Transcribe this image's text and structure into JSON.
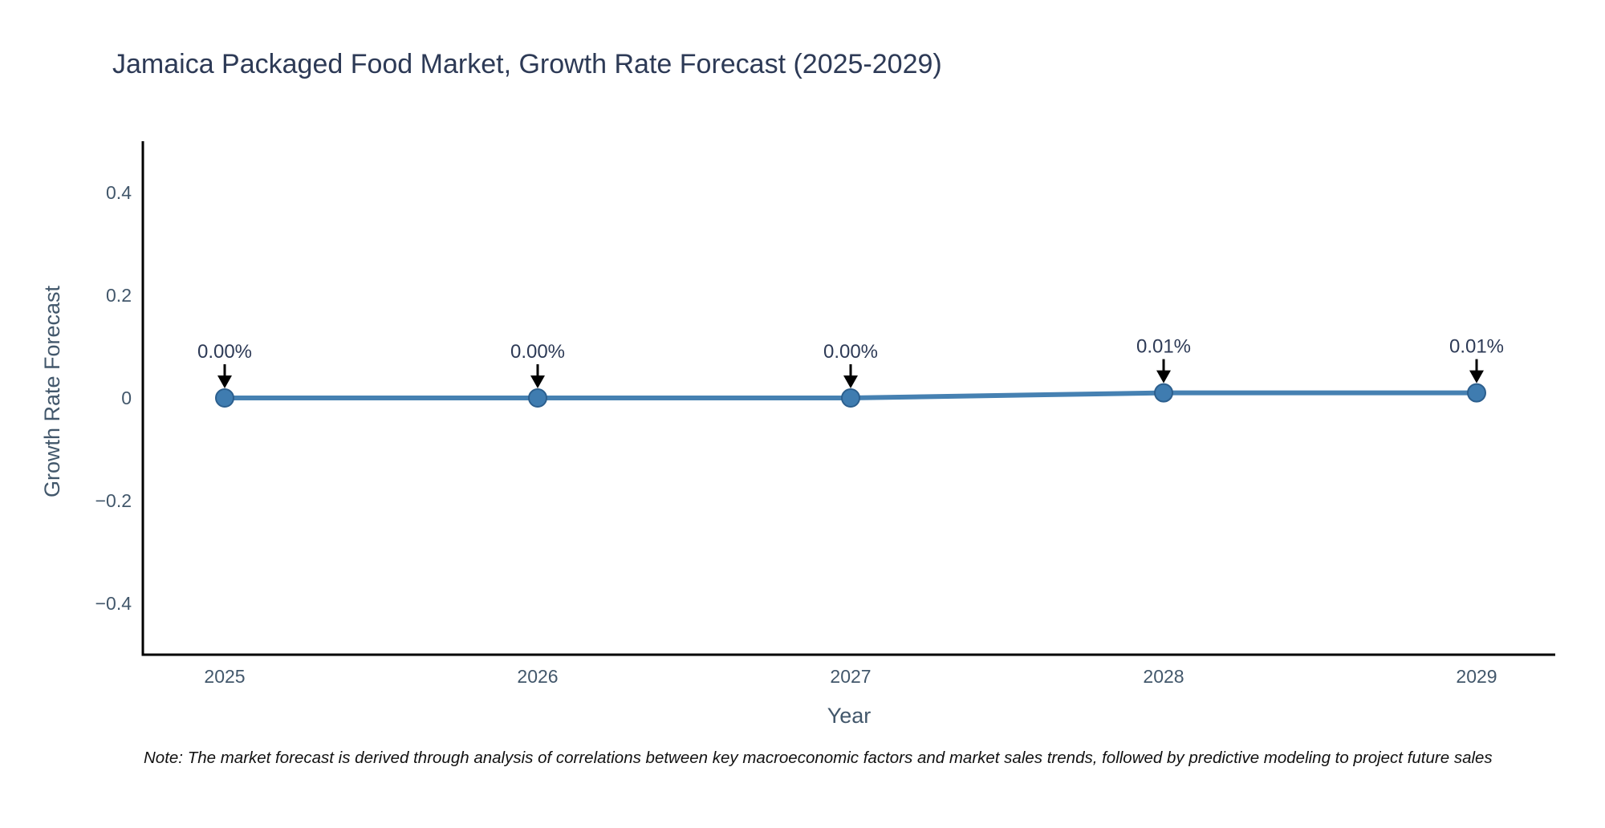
{
  "header": {
    "title": "Jamaica Packaged Food Market, Growth Rate Forecast (2025-2029)"
  },
  "footer": {
    "note": "Note: The market forecast is derived through analysis of correlations between key macroeconomic factors and market sales trends, followed by predictive modeling to project future sales"
  },
  "chart_data": {
    "type": "line",
    "title": "Jamaica Packaged Food Market, Growth Rate Forecast (2025-2029)",
    "xlabel": "Year",
    "ylabel": "Growth Rate Forecast",
    "categories": [
      "2025",
      "2026",
      "2027",
      "2028",
      "2029"
    ],
    "values": [
      0.0,
      0.0,
      0.0,
      0.01,
      0.01
    ],
    "point_labels": [
      "0.00%",
      "0.00%",
      "0.00%",
      "0.01%",
      "0.01%"
    ],
    "ylim": [
      -0.5,
      0.5
    ],
    "yticks": [
      0.4,
      0.2,
      0,
      -0.2,
      -0.4
    ],
    "ytick_labels": [
      "0.4",
      "0.2",
      "0",
      "−0.2",
      "−0.4"
    ],
    "grid": false,
    "legend": "none",
    "annotation_style": "down-arrow",
    "colors": {
      "line": "#4681b2",
      "marker_fill": "#3f7cb0",
      "marker_edge": "#2c5f8e",
      "axis_line": "#000000",
      "tick_text": "#42576b",
      "axis_title_text": "#42576b",
      "annotation_text": "#2d3a56",
      "annotation_arrow": "#000000",
      "title_text": "#2d3a56",
      "background": "#ffffff"
    }
  }
}
